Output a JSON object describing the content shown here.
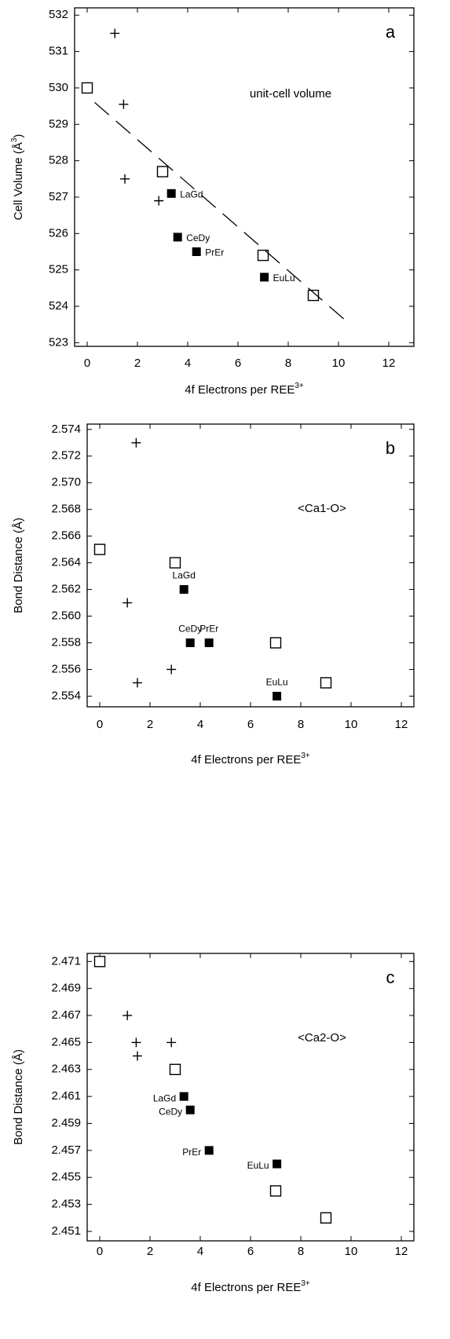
{
  "chart_data": [
    {
      "type": "scatter",
      "panel_label": "a",
      "annotation": "unit-cell volume",
      "xlabel": [
        "4f Electrons per REE",
        "3+"
      ],
      "ylabel": [
        "Cell Volume (Å",
        "3",
        ")"
      ],
      "xlim": [
        -0.5,
        13
      ],
      "ylim": [
        522.9,
        532.2
      ],
      "xticks": [
        0,
        2,
        4,
        6,
        8,
        10,
        12
      ],
      "yticks": [
        523,
        524,
        525,
        526,
        527,
        528,
        529,
        530,
        531,
        532
      ],
      "series": [
        {
          "marker": "open-square",
          "color": "#000000",
          "x": [
            0,
            3.0,
            7.0,
            9.0
          ],
          "values": [
            530.0,
            527.7,
            525.4,
            524.3
          ]
        },
        {
          "marker": "filled-square",
          "color": "#000000",
          "x": [
            3.35,
            3.6,
            4.35,
            7.05
          ],
          "values": [
            527.1,
            525.9,
            525.5,
            524.8
          ],
          "point_labels": [
            "LaGd",
            "CeDy",
            "PrEr",
            "EuLu"
          ]
        },
        {
          "marker": "plus",
          "color": "#000000",
          "x": [
            1.1,
            1.45,
            1.5,
            2.85
          ],
          "values": [
            531.5,
            529.55,
            527.5,
            526.9
          ]
        },
        {
          "marker": "dashed-line",
          "color": "#000000",
          "x": [
            0.3,
            10.3
          ],
          "values": [
            529.6,
            523.6
          ]
        }
      ]
    },
    {
      "type": "scatter",
      "panel_label": "b",
      "annotation": "<Ca1-O>",
      "xlabel": [
        "4f Electrons per REE",
        "3+"
      ],
      "ylabel": [
        "Bond Distance (Å)"
      ],
      "xlim": [
        -0.5,
        12.5
      ],
      "ylim": [
        2.5532,
        2.5744
      ],
      "xticks": [
        0,
        2,
        4,
        6,
        8,
        10,
        12
      ],
      "yticks": [
        2.554,
        2.556,
        2.558,
        {
          "value": 2.56,
          "label": "2.560"
        },
        2.562,
        2.564,
        2.566,
        2.568,
        {
          "value": 2.57,
          "label": "2.570"
        },
        2.572,
        2.574
      ],
      "series": [
        {
          "marker": "open-square",
          "color": "#000000",
          "x": [
            0,
            3.0,
            7.0,
            9.0
          ],
          "values": [
            2.565,
            2.564,
            2.558,
            2.555
          ]
        },
        {
          "marker": "filled-square",
          "color": "#000000",
          "x": [
            3.35,
            3.6,
            4.35,
            7.05
          ],
          "values": [
            2.562,
            2.558,
            2.558,
            2.554
          ],
          "point_labels": [
            "LaGd",
            "CeDy",
            "PrEr",
            "EuLu"
          ]
        },
        {
          "marker": "plus",
          "color": "#000000",
          "x": [
            1.45,
            1.1,
            1.5,
            2.85
          ],
          "values": [
            2.573,
            2.561,
            2.555,
            2.556
          ]
        }
      ]
    },
    {
      "type": "scatter",
      "panel_label": "c",
      "annotation": "<Ca2-O>",
      "xlabel": [
        "4f Electrons per REE",
        "3+"
      ],
      "ylabel": [
        "Bond Distance (Å)"
      ],
      "xlim": [
        -0.5,
        12.5
      ],
      "ylim": [
        2.4503,
        2.4716
      ],
      "xticks": [
        0,
        2,
        4,
        6,
        8,
        10,
        12
      ],
      "yticks": [
        2.451,
        2.453,
        2.455,
        2.457,
        2.459,
        2.461,
        2.463,
        2.465,
        2.467,
        2.469,
        2.471
      ],
      "series": [
        {
          "marker": "open-square",
          "color": "#000000",
          "x": [
            0,
            3.0,
            7.0,
            9.0
          ],
          "values": [
            2.471,
            2.463,
            2.454,
            2.452
          ]
        },
        {
          "marker": "filled-square",
          "color": "#000000",
          "x": [
            3.35,
            3.6,
            4.35,
            7.05
          ],
          "values": [
            2.461,
            2.46,
            2.457,
            2.456
          ],
          "point_labels": [
            "LaGd",
            "CeDy",
            "PrEr",
            "EuLu"
          ]
        },
        {
          "marker": "plus",
          "color": "#000000",
          "x": [
            1.1,
            1.45,
            1.5,
            2.85
          ],
          "values": [
            2.467,
            2.465,
            2.464,
            2.465
          ]
        }
      ]
    }
  ]
}
